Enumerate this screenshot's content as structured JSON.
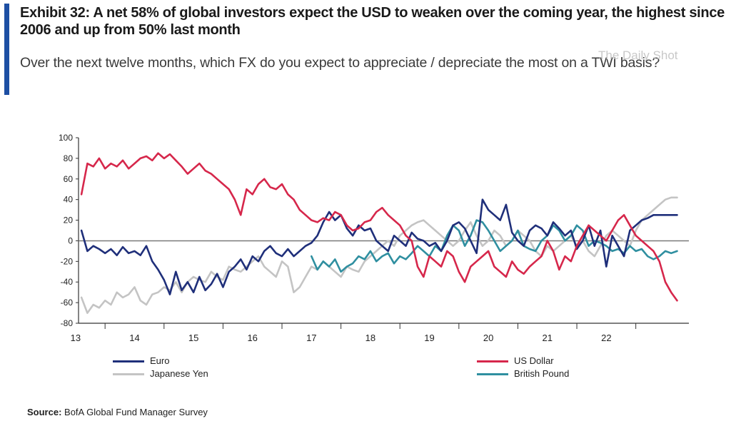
{
  "header": {
    "title": "Exhibit 32: A net 58% of global investors expect the USD to weaken over the coming year, the highest since 2006 and up from 50% last month",
    "subtitle": "Over the next twelve months, which FX do you expect to appreciate / depreciate the most on a TWI basis?",
    "watermark": "The Daily Shot"
  },
  "source": {
    "label": "Source:",
    "text": "BofA Global Fund Manager Survey"
  },
  "colors": {
    "accent": "#1d4fa3",
    "euro": "#1f2f7a",
    "usd": "#d6274b",
    "jpy": "#c4c4c4",
    "gbp": "#2f8fa0",
    "zero_line": "#7a7a7a"
  },
  "chart_data": {
    "type": "line",
    "x_tick_labels": [
      "13",
      "14",
      "15",
      "16",
      "17",
      "18",
      "19",
      "20",
      "21",
      "22"
    ],
    "y_ticks": [
      100,
      80,
      60,
      40,
      20,
      0,
      -20,
      -40,
      -60,
      -80
    ],
    "y_tick_labels": [
      "100",
      "80",
      "60",
      "40",
      "20",
      "0",
      "-20",
      "-40",
      "-60",
      "-80"
    ],
    "ylim": [
      -80,
      100
    ],
    "xlim": [
      2012.55,
      2022.9
    ],
    "legend_position": "bottom",
    "grid": false,
    "series": [
      {
        "name": "Euro",
        "color": "#1f2f7a",
        "x": [
          2012.6,
          2012.7,
          2012.8,
          2012.9,
          2013.0,
          2013.1,
          2013.2,
          2013.3,
          2013.4,
          2013.5,
          2013.6,
          2013.7,
          2013.8,
          2013.9,
          2014.0,
          2014.1,
          2014.2,
          2014.3,
          2014.4,
          2014.5,
          2014.6,
          2014.7,
          2014.8,
          2014.9,
          2015.0,
          2015.1,
          2015.2,
          2015.3,
          2015.4,
          2015.5,
          2015.6,
          2015.7,
          2015.8,
          2015.9,
          2016.0,
          2016.1,
          2016.2,
          2016.3,
          2016.4,
          2016.5,
          2016.6,
          2016.7,
          2016.8,
          2016.9,
          2017.0,
          2017.1,
          2017.2,
          2017.3,
          2017.4,
          2017.5,
          2017.6,
          2017.7,
          2017.8,
          2017.9,
          2018.0,
          2018.1,
          2018.2,
          2018.3,
          2018.4,
          2018.5,
          2018.6,
          2018.7,
          2018.8,
          2018.9,
          2019.0,
          2019.1,
          2019.2,
          2019.3,
          2019.4,
          2019.5,
          2019.6,
          2019.7,
          2019.8,
          2019.9,
          2020.0,
          2020.1,
          2020.2,
          2020.3,
          2020.4,
          2020.5,
          2020.6,
          2020.7,
          2020.8,
          2020.9,
          2021.0,
          2021.1,
          2021.2,
          2021.3,
          2021.4,
          2021.5,
          2021.6,
          2021.7,
          2021.8,
          2021.9,
          2022.0,
          2022.1,
          2022.2,
          2022.3,
          2022.4,
          2022.5,
          2022.6,
          2022.7
        ],
        "values": [
          10,
          -10,
          -5,
          -8,
          -12,
          -8,
          -14,
          -6,
          -12,
          -10,
          -14,
          -5,
          -20,
          -28,
          -38,
          -52,
          -30,
          -48,
          -40,
          -50,
          -35,
          -48,
          -42,
          -32,
          -45,
          -30,
          -25,
          -18,
          -28,
          -15,
          -20,
          -10,
          -5,
          -12,
          -15,
          -8,
          -15,
          -10,
          -5,
          -2,
          5,
          18,
          28,
          20,
          25,
          12,
          5,
          15,
          10,
          12,
          0,
          -5,
          -10,
          5,
          0,
          -5,
          8,
          2,
          0,
          -5,
          -2,
          -10,
          0,
          15,
          18,
          12,
          0,
          -12,
          40,
          30,
          25,
          20,
          35,
          8,
          0,
          -5,
          10,
          15,
          12,
          5,
          18,
          12,
          5,
          10,
          -8,
          0,
          15,
          -5,
          10,
          -25,
          5,
          -5,
          -15,
          10,
          15,
          20,
          22,
          25,
          25,
          25,
          25,
          25
        ]
      },
      {
        "name": "US Dollar",
        "color": "#d6274b",
        "x": [
          2012.6,
          2012.7,
          2012.8,
          2012.9,
          2013.0,
          2013.1,
          2013.2,
          2013.3,
          2013.4,
          2013.5,
          2013.6,
          2013.7,
          2013.8,
          2013.9,
          2014.0,
          2014.1,
          2014.2,
          2014.3,
          2014.4,
          2014.5,
          2014.6,
          2014.7,
          2014.8,
          2014.9,
          2015.0,
          2015.1,
          2015.2,
          2015.3,
          2015.4,
          2015.5,
          2015.6,
          2015.7,
          2015.8,
          2015.9,
          2016.0,
          2016.1,
          2016.2,
          2016.3,
          2016.4,
          2016.5,
          2016.6,
          2016.7,
          2016.8,
          2016.9,
          2017.0,
          2017.1,
          2017.2,
          2017.3,
          2017.4,
          2017.5,
          2017.6,
          2017.7,
          2017.8,
          2017.9,
          2018.0,
          2018.1,
          2018.2,
          2018.3,
          2018.4,
          2018.5,
          2018.6,
          2018.7,
          2018.8,
          2018.9,
          2019.0,
          2019.1,
          2019.2,
          2019.3,
          2019.4,
          2019.5,
          2019.6,
          2019.7,
          2019.8,
          2019.9,
          2020.0,
          2020.1,
          2020.2,
          2020.3,
          2020.4,
          2020.5,
          2020.6,
          2020.7,
          2020.8,
          2020.9,
          2021.0,
          2021.1,
          2021.2,
          2021.3,
          2021.4,
          2021.5,
          2021.6,
          2021.7,
          2021.8,
          2021.9,
          2022.0,
          2022.1,
          2022.2,
          2022.3,
          2022.4,
          2022.5,
          2022.6,
          2022.7
        ],
        "values": [
          45,
          75,
          72,
          80,
          70,
          75,
          72,
          78,
          70,
          75,
          80,
          82,
          78,
          85,
          80,
          84,
          78,
          72,
          65,
          70,
          75,
          68,
          65,
          60,
          55,
          50,
          40,
          25,
          50,
          45,
          55,
          60,
          52,
          50,
          55,
          45,
          40,
          30,
          25,
          20,
          18,
          22,
          20,
          28,
          25,
          15,
          10,
          12,
          18,
          20,
          28,
          32,
          25,
          20,
          15,
          5,
          0,
          -25,
          -35,
          -15,
          -20,
          -25,
          -10,
          -15,
          -30,
          -40,
          -25,
          -20,
          -15,
          -10,
          -25,
          -30,
          -35,
          -20,
          -28,
          -32,
          -25,
          -20,
          -15,
          0,
          -10,
          -28,
          -15,
          -20,
          -5,
          5,
          15,
          10,
          5,
          0,
          10,
          20,
          25,
          15,
          5,
          0,
          -5,
          -10,
          -20,
          -40,
          -50,
          -58
        ]
      },
      {
        "name": "Japanese Yen",
        "color": "#c4c4c4",
        "x": [
          2012.6,
          2012.7,
          2012.8,
          2012.9,
          2013.0,
          2013.1,
          2013.2,
          2013.3,
          2013.4,
          2013.5,
          2013.6,
          2013.7,
          2013.8,
          2013.9,
          2014.0,
          2014.1,
          2014.2,
          2014.3,
          2014.4,
          2014.5,
          2014.6,
          2014.7,
          2014.8,
          2014.9,
          2015.0,
          2015.1,
          2015.2,
          2015.3,
          2015.4,
          2015.5,
          2015.6,
          2015.7,
          2015.8,
          2015.9,
          2016.0,
          2016.1,
          2016.2,
          2016.3,
          2016.4,
          2016.5,
          2016.6,
          2016.7,
          2016.8,
          2016.9,
          2017.0,
          2017.1,
          2017.2,
          2017.3,
          2017.4,
          2017.5,
          2017.6,
          2017.7,
          2017.8,
          2017.9,
          2018.0,
          2018.1,
          2018.2,
          2018.3,
          2018.4,
          2018.5,
          2018.6,
          2018.7,
          2018.8,
          2018.9,
          2019.0,
          2019.1,
          2019.2,
          2019.3,
          2019.4,
          2019.5,
          2019.6,
          2019.7,
          2019.8,
          2019.9,
          2020.0,
          2020.1,
          2020.2,
          2020.3,
          2020.4,
          2020.5,
          2020.6,
          2020.7,
          2020.8,
          2020.9,
          2021.0,
          2021.1,
          2021.2,
          2021.3,
          2021.4,
          2021.5,
          2021.6,
          2021.7,
          2021.8,
          2021.9,
          2022.0,
          2022.1,
          2022.2,
          2022.3,
          2022.4,
          2022.5,
          2022.6,
          2022.7
        ],
        "values": [
          -55,
          -70,
          -62,
          -65,
          -58,
          -62,
          -50,
          -55,
          -52,
          -45,
          -58,
          -62,
          -52,
          -50,
          -45,
          -48,
          -40,
          -50,
          -40,
          -35,
          -38,
          -40,
          -30,
          -35,
          -38,
          -25,
          -28,
          -30,
          -25,
          -20,
          -15,
          -25,
          -30,
          -35,
          -20,
          -25,
          -50,
          -45,
          -35,
          -25,
          -28,
          -20,
          -25,
          -30,
          -35,
          -25,
          -28,
          -30,
          -20,
          -15,
          -10,
          -5,
          0,
          -5,
          5,
          10,
          15,
          18,
          20,
          15,
          10,
          5,
          0,
          -5,
          0,
          10,
          18,
          5,
          -5,
          0,
          10,
          5,
          -5,
          0,
          10,
          5,
          0,
          -10,
          -15,
          -5,
          -10,
          -5,
          0,
          5,
          -5,
          0,
          -10,
          -15,
          -5,
          5,
          10,
          5,
          0,
          -5,
          10,
          20,
          25,
          30,
          35,
          40,
          42,
          42
        ]
      },
      {
        "name": "British Pound",
        "color": "#2f8fa0",
        "x": [
          2016.5,
          2016.6,
          2016.7,
          2016.8,
          2016.9,
          2017.0,
          2017.1,
          2017.2,
          2017.3,
          2017.4,
          2017.5,
          2017.6,
          2017.7,
          2017.8,
          2017.9,
          2018.0,
          2018.1,
          2018.2,
          2018.3,
          2018.4,
          2018.5,
          2018.6,
          2018.7,
          2018.8,
          2018.9,
          2019.0,
          2019.1,
          2019.2,
          2019.3,
          2019.4,
          2019.5,
          2019.6,
          2019.7,
          2019.8,
          2019.9,
          2020.0,
          2020.1,
          2020.2,
          2020.3,
          2020.4,
          2020.5,
          2020.6,
          2020.7,
          2020.8,
          2020.9,
          2021.0,
          2021.1,
          2021.2,
          2021.3,
          2021.4,
          2021.5,
          2021.6,
          2021.7,
          2021.8,
          2021.9,
          2022.0,
          2022.1,
          2022.2,
          2022.3,
          2022.4,
          2022.5,
          2022.6,
          2022.7
        ],
        "values": [
          -15,
          -28,
          -20,
          -25,
          -18,
          -30,
          -25,
          -22,
          -15,
          -18,
          -10,
          -20,
          -15,
          -12,
          -22,
          -15,
          -18,
          -12,
          -5,
          -10,
          -15,
          -5,
          -10,
          5,
          15,
          10,
          -5,
          5,
          20,
          18,
          10,
          0,
          -10,
          -5,
          0,
          10,
          -5,
          -8,
          -10,
          0,
          5,
          15,
          10,
          0,
          5,
          15,
          10,
          -5,
          0,
          -2,
          -5,
          -10,
          -8,
          -12,
          -5,
          -10,
          -8,
          -15,
          -18,
          -15,
          -10,
          -12,
          -10
        ]
      }
    ]
  }
}
